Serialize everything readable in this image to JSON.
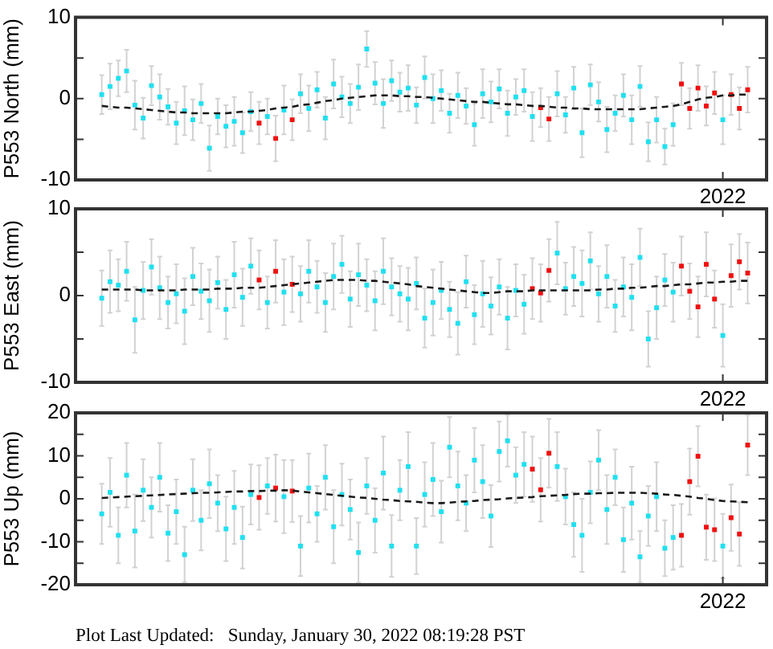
{
  "chart_data": [
    {
      "type": "scatter",
      "ylabel": "P553 North (mm)",
      "marker": "square",
      "categories": [
        null,
        null,
        null,
        null,
        null,
        null,
        null,
        null,
        null,
        null,
        null,
        null,
        null,
        null,
        null,
        null,
        null,
        null,
        null,
        null,
        null,
        null,
        null,
        null,
        null,
        null,
        null,
        null,
        null,
        null,
        null,
        null,
        null,
        null,
        null,
        null,
        null,
        null,
        null,
        null,
        null,
        null,
        null,
        null,
        null,
        null,
        null,
        null,
        null,
        null,
        null,
        null,
        null,
        null,
        null,
        null,
        null,
        null,
        null,
        null,
        null,
        null,
        null,
        null,
        null,
        null,
        null,
        null,
        null,
        null,
        null,
        null,
        null,
        null,
        null,
        "2022",
        null,
        null,
        null
      ],
      "ylim": [
        -10,
        10
      ],
      "yticks": [
        -10,
        {
          "value": -5,
          "label": null
        },
        0,
        {
          "value": 5,
          "label": null
        },
        10
      ],
      "series": [
        {
          "color": "#20e0f0",
          "values": [
            0.5,
            1.5,
            2.5,
            3.4,
            -0.8,
            -2.4,
            1.6,
            0.2,
            -1.0,
            -3.0,
            -1.5,
            -2.6,
            -0.6,
            -6.1,
            -2.2,
            -3.4,
            -2.8,
            -4.2,
            -1.6,
            null,
            -2.2,
            null,
            -1.4,
            null,
            0.6,
            -1.2,
            1.1,
            -2.4,
            1.8,
            0.2,
            -0.6,
            1.4,
            6.1,
            1.9,
            -0.6,
            2.2,
            0.8,
            1.3,
            -0.8,
            2.6,
            0.0,
            1.0,
            -1.8,
            0.4,
            -0.9,
            -3.2,
            0.6,
            -0.4,
            1.2,
            -1.8,
            0.2,
            1.0,
            -2.2,
            null,
            null,
            0.6,
            -2.0,
            1.3,
            -4.2,
            1.7,
            -0.4,
            -3.8,
            -1.8,
            0.4,
            -2.6,
            1.5,
            -5.3,
            -2.6,
            -5.9,
            -3.2,
            null,
            null,
            null,
            null,
            null,
            -2.6,
            null,
            null,
            null
          ],
          "errors": [
            2.4,
            2.8,
            2.2,
            2.6,
            3.0,
            2.5,
            2.4,
            2.8,
            2.2,
            2.6,
            3.0,
            2.5,
            2.4,
            2.8,
            2.2,
            2.6,
            3.0,
            2.5,
            2.4,
            null,
            2.2,
            null,
            3.0,
            null,
            2.4,
            2.8,
            2.2,
            2.6,
            3.0,
            2.5,
            2.4,
            2.8,
            2.2,
            2.6,
            3.0,
            2.5,
            2.4,
            2.8,
            2.2,
            2.6,
            3.0,
            2.5,
            2.4,
            2.8,
            2.2,
            2.6,
            3.0,
            2.5,
            2.4,
            2.8,
            2.2,
            2.6,
            3.0,
            null,
            null,
            2.8,
            2.2,
            2.6,
            3.0,
            2.5,
            2.4,
            2.8,
            2.2,
            2.6,
            3.0,
            2.5,
            2.4,
            2.8,
            2.2,
            2.6,
            null,
            null,
            null,
            null,
            null,
            3.0,
            null,
            null,
            null
          ]
        },
        {
          "color": "#f01010",
          "values": [
            null,
            null,
            null,
            null,
            null,
            null,
            null,
            null,
            null,
            null,
            null,
            null,
            null,
            null,
            null,
            null,
            null,
            null,
            null,
            -3.0,
            null,
            -4.9,
            null,
            -2.6,
            null,
            null,
            null,
            null,
            null,
            null,
            null,
            null,
            null,
            null,
            null,
            null,
            null,
            null,
            null,
            null,
            null,
            null,
            null,
            null,
            null,
            null,
            null,
            null,
            null,
            null,
            null,
            null,
            null,
            -1.1,
            -2.5,
            null,
            null,
            null,
            null,
            null,
            null,
            null,
            null,
            null,
            null,
            null,
            null,
            null,
            null,
            null,
            1.8,
            -1.2,
            1.3,
            -0.9,
            0.7,
            null,
            0.5,
            -1.2,
            1.1
          ],
          "errors": [
            null,
            null,
            null,
            null,
            null,
            null,
            null,
            null,
            null,
            null,
            null,
            null,
            null,
            null,
            null,
            null,
            null,
            null,
            null,
            2.6,
            null,
            2.8,
            null,
            2.5,
            null,
            null,
            null,
            null,
            null,
            null,
            null,
            null,
            null,
            null,
            null,
            null,
            null,
            null,
            null,
            null,
            null,
            null,
            null,
            null,
            null,
            null,
            null,
            null,
            null,
            null,
            null,
            null,
            null,
            2.4,
            2.7,
            null,
            null,
            null,
            null,
            null,
            null,
            null,
            null,
            null,
            null,
            null,
            null,
            null,
            null,
            null,
            2.6,
            2.5,
            2.8,
            2.4,
            2.6,
            null,
            2.5,
            2.6,
            2.8
          ]
        },
        {
          "type": "line",
          "color": "#1a1a1a",
          "line_style": "dashed",
          "marker": "none",
          "values": [
            -0.9,
            -1.0,
            -1.1,
            -1.1,
            -1.2,
            -1.3,
            -1.4,
            -1.5,
            -1.6,
            -1.7,
            -1.7,
            -1.8,
            -1.8,
            -1.8,
            -1.8,
            -1.8,
            -1.7,
            -1.6,
            -1.6,
            -1.5,
            -1.4,
            -1.2,
            -1.1,
            -1.0,
            -0.8,
            -0.7,
            -0.5,
            -0.3,
            -0.2,
            0.0,
            0.1,
            0.2,
            0.3,
            0.4,
            0.4,
            0.4,
            0.3,
            0.3,
            0.2,
            0.2,
            0.1,
            0.0,
            -0.1,
            -0.2,
            -0.3,
            -0.4,
            -0.4,
            -0.5,
            -0.6,
            -0.7,
            -0.7,
            -0.8,
            -0.9,
            -0.9,
            -1.0,
            -1.1,
            -1.1,
            -1.2,
            -1.2,
            -1.3,
            -1.3,
            -1.3,
            -1.3,
            -1.3,
            -1.3,
            -1.3,
            -1.2,
            -1.1,
            -1.0,
            -0.9,
            -0.7,
            -0.4,
            -0.1,
            0.1,
            0.2,
            0.4,
            0.4,
            0.5,
            0.5
          ]
        }
      ]
    },
    {
      "type": "scatter",
      "ylabel": "P553 East (mm)",
      "marker": "square",
      "categories": [
        null,
        null,
        null,
        null,
        null,
        null,
        null,
        null,
        null,
        null,
        null,
        null,
        null,
        null,
        null,
        null,
        null,
        null,
        null,
        null,
        null,
        null,
        null,
        null,
        null,
        null,
        null,
        null,
        null,
        null,
        null,
        null,
        null,
        null,
        null,
        null,
        null,
        null,
        null,
        null,
        null,
        null,
        null,
        null,
        null,
        null,
        null,
        null,
        null,
        null,
        null,
        null,
        null,
        null,
        null,
        null,
        null,
        null,
        null,
        null,
        null,
        null,
        null,
        null,
        null,
        null,
        null,
        null,
        null,
        null,
        null,
        null,
        null,
        null,
        null,
        "2022",
        null,
        null,
        null
      ],
      "ylim": [
        -10,
        10
      ],
      "yticks": [
        -10,
        {
          "value": -5,
          "label": null
        },
        0,
        {
          "value": 5,
          "label": null
        },
        10
      ],
      "series": [
        {
          "color": "#20e0f0",
          "values": [
            -0.3,
            1.6,
            1.2,
            2.8,
            -2.8,
            0.6,
            3.3,
            0.9,
            -0.8,
            0.2,
            -1.8,
            2.2,
            0.5,
            -0.6,
            1.5,
            -1.6,
            2.4,
            -0.2,
            3.4,
            null,
            -0.8,
            null,
            0.4,
            null,
            0.2,
            2.8,
            1.0,
            -0.8,
            2.2,
            3.6,
            -0.4,
            2.4,
            1.2,
            -0.6,
            2.8,
            1.0,
            0.2,
            -0.4,
            1.4,
            -2.6,
            -0.8,
            0.6,
            -1.6,
            -3.2,
            1.6,
            -2.2,
            0.2,
            -1.2,
            1.0,
            -2.6,
            0.6,
            -1.0,
            null,
            null,
            null,
            4.9,
            0.8,
            2.2,
            1.4,
            4.0,
            0.2,
            2.2,
            -1.2,
            1.0,
            -0.2,
            4.4,
            -5.0,
            -1.4,
            1.8,
            0.4,
            null,
            null,
            null,
            null,
            null,
            -4.6,
            null,
            null,
            null
          ],
          "errors": [
            3.2,
            3.6,
            3.0,
            3.4,
            3.8,
            3.3,
            3.2,
            3.6,
            3.0,
            3.4,
            3.8,
            3.3,
            3.2,
            3.6,
            3.0,
            3.4,
            3.8,
            3.3,
            3.2,
            null,
            3.0,
            null,
            3.8,
            null,
            3.2,
            3.6,
            3.0,
            3.4,
            3.8,
            3.3,
            3.2,
            3.6,
            3.0,
            3.4,
            3.8,
            3.3,
            3.2,
            3.6,
            3.0,
            3.4,
            3.8,
            3.3,
            3.2,
            3.6,
            3.0,
            3.4,
            3.8,
            3.3,
            3.2,
            3.6,
            3.0,
            3.4,
            null,
            null,
            null,
            3.6,
            3.0,
            3.4,
            3.8,
            3.3,
            3.2,
            3.6,
            3.0,
            3.4,
            3.8,
            3.3,
            3.2,
            3.6,
            3.0,
            3.4,
            null,
            null,
            null,
            null,
            null,
            3.6,
            null,
            null,
            null
          ]
        },
        {
          "color": "#f01010",
          "values": [
            null,
            null,
            null,
            null,
            null,
            null,
            null,
            null,
            null,
            null,
            null,
            null,
            null,
            null,
            null,
            null,
            null,
            null,
            null,
            1.8,
            null,
            2.8,
            null,
            1.3,
            null,
            null,
            null,
            null,
            null,
            null,
            null,
            null,
            null,
            null,
            null,
            null,
            null,
            null,
            null,
            null,
            null,
            null,
            null,
            null,
            null,
            null,
            null,
            null,
            null,
            null,
            null,
            null,
            0.8,
            0.3,
            2.9,
            null,
            null,
            null,
            null,
            null,
            null,
            null,
            null,
            null,
            null,
            null,
            null,
            null,
            null,
            null,
            3.4,
            0.5,
            -1.3,
            3.6,
            -0.4,
            null,
            2.3,
            3.9,
            2.6
          ],
          "errors": [
            null,
            null,
            null,
            null,
            null,
            null,
            null,
            null,
            null,
            null,
            null,
            null,
            null,
            null,
            null,
            null,
            null,
            null,
            null,
            3.4,
            null,
            3.6,
            null,
            3.2,
            null,
            null,
            null,
            null,
            null,
            null,
            null,
            null,
            null,
            null,
            null,
            null,
            null,
            null,
            null,
            null,
            null,
            null,
            null,
            null,
            null,
            null,
            null,
            null,
            null,
            null,
            null,
            null,
            3.5,
            3.3,
            3.6,
            null,
            null,
            null,
            null,
            null,
            null,
            null,
            null,
            null,
            null,
            null,
            null,
            null,
            null,
            null,
            3.4,
            3.2,
            3.5,
            3.7,
            3.3,
            null,
            3.6,
            3.2,
            3.5
          ]
        },
        {
          "type": "line",
          "color": "#1a1a1a",
          "line_style": "dashed",
          "marker": "none",
          "values": [
            0.7,
            0.7,
            0.7,
            0.7,
            0.7,
            0.6,
            0.6,
            0.6,
            0.6,
            0.6,
            0.7,
            0.7,
            0.7,
            0.7,
            0.8,
            0.8,
            0.8,
            0.9,
            0.9,
            0.9,
            1.0,
            1.1,
            1.2,
            1.3,
            1.4,
            1.5,
            1.6,
            1.7,
            1.8,
            1.8,
            1.8,
            1.8,
            1.7,
            1.7,
            1.6,
            1.5,
            1.4,
            1.3,
            1.1,
            1.0,
            0.9,
            0.8,
            0.7,
            0.6,
            0.5,
            0.4,
            0.3,
            0.3,
            0.4,
            0.5,
            0.5,
            0.5,
            0.6,
            0.6,
            0.6,
            0.6,
            0.6,
            0.6,
            0.6,
            0.6,
            0.7,
            0.7,
            0.8,
            0.8,
            0.9,
            0.9,
            1.0,
            1.1,
            1.1,
            1.2,
            1.3,
            1.3,
            1.4,
            1.5,
            1.5,
            1.6,
            1.6,
            1.7,
            1.7
          ]
        }
      ]
    },
    {
      "type": "scatter",
      "ylabel": "P553 Up (mm)",
      "marker": "square",
      "categories": [
        null,
        null,
        null,
        null,
        null,
        null,
        null,
        null,
        null,
        null,
        null,
        null,
        null,
        null,
        null,
        null,
        null,
        null,
        null,
        null,
        null,
        null,
        null,
        null,
        null,
        null,
        null,
        null,
        null,
        null,
        null,
        null,
        null,
        null,
        null,
        null,
        null,
        null,
        null,
        null,
        null,
        null,
        null,
        null,
        null,
        null,
        null,
        null,
        null,
        null,
        null,
        null,
        null,
        null,
        null,
        null,
        null,
        null,
        null,
        null,
        null,
        null,
        null,
        null,
        null,
        null,
        null,
        null,
        null,
        null,
        null,
        null,
        null,
        null,
        null,
        "2022",
        null,
        null,
        null
      ],
      "ylim": [
        -20,
        20
      ],
      "yticks": [
        -20,
        {
          "value": -15,
          "label": null
        },
        -10,
        {
          "value": -5,
          "label": null
        },
        0,
        {
          "value": 5,
          "label": null
        },
        10,
        {
          "value": 15,
          "label": null
        },
        20
      ],
      "series": [
        {
          "color": "#20e0f0",
          "values": [
            -3.5,
            1.5,
            -8.5,
            5.5,
            -7.5,
            2.0,
            -2.0,
            5.0,
            -8.0,
            -3.0,
            -13.0,
            2.0,
            -5.0,
            3.5,
            -1.0,
            -7.0,
            -2.0,
            -9.0,
            1.0,
            null,
            3.0,
            null,
            0.5,
            null,
            -11.0,
            2.5,
            -3.5,
            5.0,
            -6.5,
            1.0,
            -2.5,
            -12.5,
            3.0,
            -5.0,
            6.0,
            -11.0,
            2.0,
            7.5,
            -11.0,
            1.0,
            4.5,
            -3.0,
            12.0,
            3.0,
            -1.0,
            9.0,
            4.0,
            -4.0,
            11.0,
            13.5,
            5.5,
            8.0,
            null,
            null,
            null,
            7.5,
            0.5,
            -6.0,
            -8.5,
            1.5,
            9.0,
            -2.5,
            5.0,
            -9.5,
            -1.0,
            -13.5,
            -4.0,
            0.5,
            -11.5,
            -9.0,
            null,
            null,
            null,
            null,
            null,
            -11.0,
            null,
            null,
            null
          ],
          "errors": [
            7.0,
            8.0,
            6.5,
            7.5,
            8.5,
            7.2,
            7.0,
            8.0,
            6.5,
            7.5,
            6.5,
            7.2,
            7.0,
            8.0,
            6.5,
            7.5,
            8.5,
            7.2,
            7.0,
            null,
            6.5,
            null,
            8.5,
            null,
            7.0,
            8.0,
            6.5,
            7.5,
            8.5,
            7.2,
            7.0,
            7.0,
            6.5,
            7.5,
            8.5,
            7.2,
            7.0,
            8.0,
            6.5,
            7.5,
            8.5,
            7.2,
            7.0,
            8.0,
            6.5,
            7.5,
            8.5,
            7.2,
            7.0,
            6.0,
            6.5,
            7.5,
            null,
            null,
            null,
            8.0,
            6.5,
            7.5,
            8.5,
            7.2,
            7.0,
            8.0,
            6.5,
            7.5,
            8.5,
            6.0,
            7.0,
            8.0,
            6.5,
            7.5,
            null,
            null,
            null,
            null,
            null,
            7.5,
            null,
            null,
            null
          ]
        },
        {
          "color": "#f01010",
          "values": [
            null,
            null,
            null,
            null,
            null,
            null,
            null,
            null,
            null,
            null,
            null,
            null,
            null,
            null,
            null,
            null,
            null,
            null,
            null,
            0.3,
            null,
            2.5,
            null,
            1.8,
            null,
            null,
            null,
            null,
            null,
            null,
            null,
            null,
            null,
            null,
            null,
            null,
            null,
            null,
            null,
            null,
            null,
            null,
            null,
            null,
            null,
            null,
            null,
            null,
            null,
            null,
            null,
            null,
            6.9,
            2.1,
            10.6,
            null,
            null,
            null,
            null,
            null,
            null,
            null,
            null,
            null,
            null,
            null,
            null,
            null,
            null,
            null,
            -8.5,
            4.0,
            9.9,
            -6.6,
            -7.2,
            null,
            -4.4,
            -8.2,
            12.5
          ],
          "errors": [
            null,
            null,
            null,
            null,
            null,
            null,
            null,
            null,
            null,
            null,
            null,
            null,
            null,
            null,
            null,
            null,
            null,
            null,
            null,
            7.5,
            null,
            7.8,
            null,
            7.2,
            null,
            null,
            null,
            null,
            null,
            null,
            null,
            null,
            null,
            null,
            null,
            null,
            null,
            null,
            null,
            null,
            null,
            null,
            null,
            null,
            null,
            null,
            null,
            null,
            null,
            null,
            null,
            null,
            7.6,
            7.4,
            8.0,
            null,
            null,
            null,
            null,
            null,
            null,
            null,
            null,
            null,
            null,
            null,
            null,
            null,
            null,
            null,
            7.3,
            7.7,
            7.0,
            7.6,
            7.3,
            null,
            7.7,
            7.4,
            7.0
          ]
        },
        {
          "type": "line",
          "color": "#1a1a1a",
          "line_style": "dashed",
          "marker": "none",
          "values": [
            0.2,
            0.3,
            0.4,
            0.5,
            0.6,
            0.7,
            0.8,
            0.9,
            1.0,
            1.1,
            1.2,
            1.3,
            1.4,
            1.4,
            1.5,
            1.6,
            1.7,
            1.7,
            1.8,
            1.8,
            1.9,
            1.9,
            2.0,
            1.9,
            1.7,
            1.5,
            1.3,
            1.1,
            0.9,
            0.7,
            0.5,
            0.3,
            0.2,
            0.0,
            -0.2,
            -0.3,
            -0.5,
            -0.6,
            -0.7,
            -0.9,
            -1.0,
            -1.0,
            -0.9,
            -0.7,
            -0.6,
            -0.5,
            -0.3,
            -0.2,
            -0.1,
            0.1,
            0.2,
            0.3,
            0.4,
            0.6,
            0.7,
            0.8,
            0.9,
            1.1,
            1.2,
            1.2,
            1.3,
            1.3,
            1.4,
            1.4,
            1.4,
            1.4,
            1.3,
            1.2,
            1.0,
            0.9,
            0.7,
            0.5,
            0.2,
            0.0,
            -0.3,
            -0.5,
            -0.6,
            -0.7,
            -0.8
          ]
        }
      ],
      "annotations": [
        "Plot Last Updated:   Sunday, January 30, 2022 08:19:28 PST"
      ]
    }
  ]
}
